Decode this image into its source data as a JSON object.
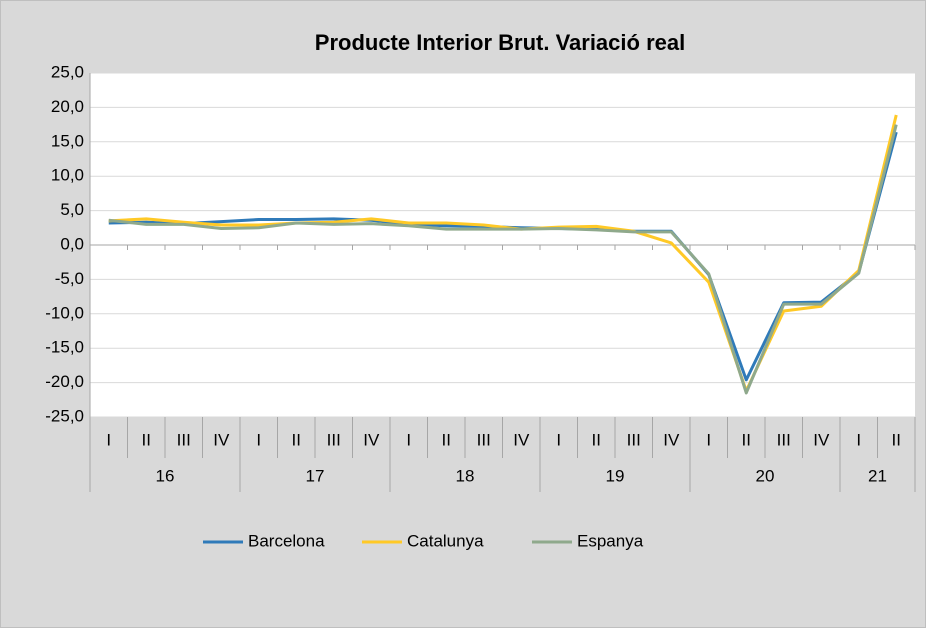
{
  "chart_data": {
    "type": "line",
    "title": "Producte Interior Brut. Variació real",
    "category_groups": [
      {
        "label": "16",
        "categories": [
          "I",
          "II",
          "III",
          "IV"
        ]
      },
      {
        "label": "17",
        "categories": [
          "I",
          "II",
          "III",
          "IV"
        ]
      },
      {
        "label": "18",
        "categories": [
          "I",
          "II",
          "III",
          "IV"
        ]
      },
      {
        "label": "19",
        "categories": [
          "I",
          "II",
          "III",
          "IV"
        ]
      },
      {
        "label": "20",
        "categories": [
          "I",
          "II",
          "III",
          "IV"
        ]
      },
      {
        "label": "21",
        "categories": [
          "I",
          "II"
        ]
      }
    ],
    "series": [
      {
        "name": "Barcelona",
        "color": "#2f7ab9",
        "values": [
          3.2,
          3.3,
          3.1,
          3.4,
          3.7,
          3.7,
          3.8,
          3.6,
          3.0,
          2.8,
          2.7,
          2.5,
          2.4,
          2.3,
          2.0,
          2.0,
          -4.3,
          -19.6,
          -8.4,
          -8.3,
          -4.0,
          16.4
        ]
      },
      {
        "name": "Catalunya",
        "color": "#ffc926",
        "values": [
          3.5,
          3.8,
          3.3,
          2.9,
          2.9,
          3.2,
          3.3,
          3.8,
          3.2,
          3.2,
          2.9,
          2.3,
          2.6,
          2.7,
          2.0,
          0.3,
          -5.4,
          -21.2,
          -9.6,
          -8.9,
          -3.7,
          18.9
        ]
      },
      {
        "name": "Espanya",
        "color": "#8fa98c",
        "values": [
          3.6,
          3.0,
          3.0,
          2.4,
          2.5,
          3.2,
          3.0,
          3.1,
          2.8,
          2.3,
          2.3,
          2.3,
          2.4,
          2.2,
          1.9,
          1.9,
          -4.2,
          -21.5,
          -8.6,
          -8.6,
          -4.1,
          17.5
        ]
      }
    ],
    "ylim": [
      -25,
      25
    ],
    "yticks": [
      {
        "value": -25,
        "label": "-25,0"
      },
      {
        "value": -20,
        "label": "-20,0"
      },
      {
        "value": -15,
        "label": "-15,0"
      },
      {
        "value": -10,
        "label": "-10,0"
      },
      {
        "value": -5,
        "label": "-5,0"
      },
      {
        "value": 0,
        "label": "0,0"
      },
      {
        "value": 5,
        "label": "5,0"
      },
      {
        "value": 10,
        "label": "10,0"
      },
      {
        "value": 15,
        "label": "15,0"
      },
      {
        "value": 20,
        "label": "20,0"
      },
      {
        "value": 25,
        "label": "25,0"
      }
    ],
    "grid": true,
    "legend": "bottom"
  }
}
